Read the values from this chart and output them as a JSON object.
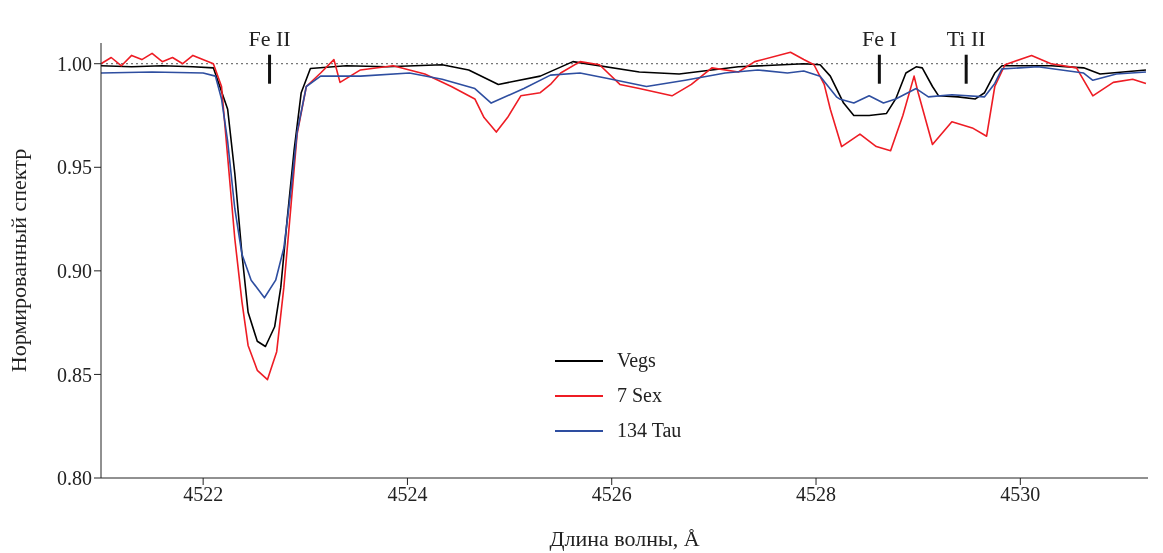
{
  "chart_data": {
    "type": "line",
    "xlabel": "Длина волны, Å",
    "ylabel": "Нормированный спектр",
    "xlim": [
      4521.0,
      4531.25
    ],
    "xticks": [
      4522,
      4524,
      4526,
      4528,
      4530
    ],
    "ylim": [
      0.8,
      1.01
    ],
    "yticks": [
      {
        "value": 0.8,
        "label": "0.80"
      },
      {
        "value": 0.85,
        "label": "0.85"
      },
      {
        "value": 0.9,
        "label": "0.90"
      },
      {
        "value": 0.95,
        "label": "0.95"
      },
      {
        "value": 1.0,
        "label": "1.00"
      }
    ],
    "grid": false,
    "legend": "bottom",
    "marker": "none",
    "line_style": "solid",
    "ref_lines": [
      {
        "axis": "y",
        "value": 1.0,
        "color": "#555555",
        "line_style": "dotted"
      }
    ],
    "annotations": [
      {
        "text": "Fe II",
        "x": 4522.65,
        "y": 1.0
      },
      {
        "text": "Fe I",
        "x": 4528.62,
        "y": 1.0
      },
      {
        "text": "Ti II",
        "x": 4529.47,
        "y": 1.0
      }
    ],
    "series": [
      {
        "name": "Vegs",
        "color": "#000000",
        "x": [
          4521.0,
          4521.3,
          4521.6,
          4521.9,
          4522.1,
          4522.24,
          4522.31,
          4522.38,
          4522.44,
          4522.53,
          4522.61,
          4522.7,
          4522.76,
          4522.82,
          4522.89,
          4522.96,
          4523.05,
          4523.4,
          4523.8,
          4524.34,
          4524.6,
          4524.89,
          4525.3,
          4525.62,
          4526.27,
          4526.66,
          4527.24,
          4527.88,
          4528.04,
          4528.14,
          4528.27,
          4528.37,
          4528.52,
          4528.69,
          4528.78,
          4528.88,
          4528.98,
          4529.04,
          4529.14,
          4529.2,
          4529.39,
          4529.56,
          4529.65,
          4529.75,
          4529.82,
          4530.3,
          4530.62,
          4530.78,
          4531.23
        ],
        "values": [
          0.999,
          0.9985,
          0.999,
          0.9985,
          0.998,
          0.978,
          0.947,
          0.908,
          0.88,
          0.866,
          0.8635,
          0.873,
          0.892,
          0.9235,
          0.958,
          0.986,
          0.9977,
          0.999,
          0.9985,
          0.9995,
          0.997,
          0.99,
          0.994,
          1.001,
          0.996,
          0.995,
          0.9985,
          1.0,
          0.9995,
          0.994,
          0.981,
          0.975,
          0.975,
          0.976,
          0.983,
          0.9955,
          0.9985,
          0.998,
          0.989,
          0.9845,
          0.984,
          0.983,
          0.986,
          0.9955,
          0.999,
          0.999,
          0.998,
          0.995,
          0.997
        ]
      },
      {
        "name": "7 Sex",
        "color": "#ee1c24",
        "x": [
          4521.0,
          4521.1,
          4521.2,
          4521.3,
          4521.4,
          4521.5,
          4521.6,
          4521.7,
          4521.8,
          4521.9,
          4522.1,
          4522.18,
          4522.24,
          4522.31,
          4522.38,
          4522.44,
          4522.53,
          4522.63,
          4522.72,
          4522.79,
          4522.86,
          4522.92,
          4523.01,
          4523.15,
          4523.28,
          4523.34,
          4523.54,
          4523.86,
          4524.17,
          4524.43,
          4524.66,
          4524.75,
          4524.87,
          4524.98,
          4525.11,
          4525.3,
          4525.4,
          4525.5,
          4525.69,
          4525.88,
          4526.08,
          4526.27,
          4526.59,
          4526.78,
          4526.98,
          4527.24,
          4527.4,
          4527.75,
          4527.88,
          4527.98,
          4528.08,
          4528.14,
          4528.25,
          4528.43,
          4528.59,
          4528.73,
          4528.85,
          4528.96,
          4529.0,
          4529.14,
          4529.33,
          4529.53,
          4529.67,
          4529.75,
          4529.85,
          4530.11,
          4530.3,
          4530.55,
          4530.71,
          4530.91,
          4531.1,
          4531.23
        ],
        "values": [
          1.0,
          1.003,
          0.999,
          1.004,
          1.002,
          1.005,
          1.001,
          1.003,
          1.0,
          1.004,
          1.0,
          0.989,
          0.955,
          0.9155,
          0.885,
          0.864,
          0.852,
          0.8475,
          0.861,
          0.892,
          0.9315,
          0.966,
          0.989,
          0.9955,
          1.002,
          0.991,
          0.997,
          0.999,
          0.995,
          0.989,
          0.983,
          0.974,
          0.967,
          0.974,
          0.9845,
          0.986,
          0.99,
          0.9955,
          1.001,
          0.9995,
          0.99,
          0.988,
          0.9845,
          0.99,
          0.998,
          0.996,
          1.001,
          1.0055,
          1.002,
          0.9995,
          0.99,
          0.978,
          0.96,
          0.966,
          0.96,
          0.958,
          0.975,
          0.994,
          0.986,
          0.961,
          0.972,
          0.969,
          0.965,
          0.989,
          0.9995,
          1.004,
          1.0,
          0.998,
          0.9845,
          0.991,
          0.9925,
          0.9905
        ]
      },
      {
        "name": "134 Tau",
        "color": "#2e4ea0",
        "x": [
          4521.0,
          4521.5,
          4522.0,
          4522.12,
          4522.18,
          4522.24,
          4522.31,
          4522.38,
          4522.47,
          4522.6,
          4522.71,
          4522.79,
          4522.86,
          4522.92,
          4523.01,
          4523.15,
          4523.54,
          4524.02,
          4524.34,
          4524.66,
          4524.82,
          4525.14,
          4525.4,
          4525.69,
          4525.95,
          4526.34,
          4526.72,
          4527.11,
          4527.43,
          4527.72,
          4527.88,
          4528.04,
          4528.2,
          4528.23,
          4528.37,
          4528.52,
          4528.66,
          4528.78,
          4528.98,
          4529.1,
          4529.33,
          4529.65,
          4529.75,
          4529.82,
          4530.17,
          4530.62,
          4530.71,
          4530.94,
          4531.23
        ],
        "values": [
          0.9955,
          0.996,
          0.9955,
          0.994,
          0.983,
          0.9625,
          0.93,
          0.908,
          0.8955,
          0.887,
          0.8955,
          0.911,
          0.939,
          0.967,
          0.989,
          0.994,
          0.994,
          0.9955,
          0.9925,
          0.988,
          0.981,
          0.988,
          0.9945,
          0.9955,
          0.993,
          0.989,
          0.992,
          0.9955,
          0.997,
          0.9955,
          0.9965,
          0.994,
          0.984,
          0.983,
          0.981,
          0.9845,
          0.981,
          0.983,
          0.988,
          0.984,
          0.985,
          0.984,
          0.9905,
          0.9975,
          0.9985,
          0.9955,
          0.992,
          0.995,
          0.996
        ]
      }
    ]
  }
}
